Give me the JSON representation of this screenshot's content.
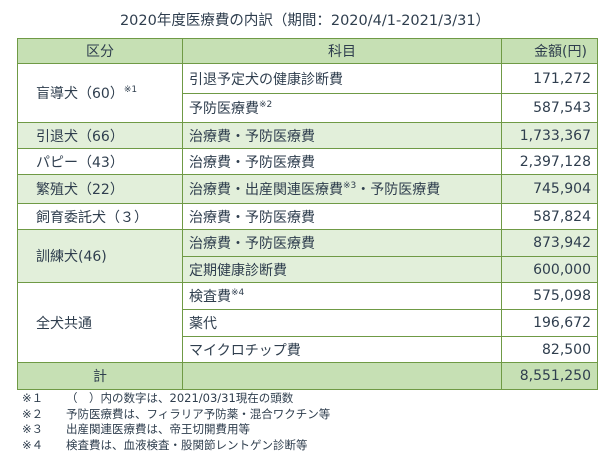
{
  "title": "2020年度医療費の内訳（期間：2020/4/1-2021/3/31）",
  "headers": [
    "区分",
    "科目",
    "金額(円)"
  ],
  "rows": [
    {
      "category": "盲導犬（60）",
      "category_note": "※1",
      "item": "引退予定犬の健康診断費",
      "amount": "171,272"
    },
    {
      "item": "予防医療費",
      "item_note": "※2",
      "amount": "587,543"
    },
    {
      "category": "引退犬（66）",
      "item": "治療費・予防医療費",
      "amount": "1,733,367"
    },
    {
      "category": "パピー（43）",
      "item": "治療費・予防医療費",
      "amount": "2,397,128"
    },
    {
      "category": "繁殖犬（22）",
      "item": "治療費・出産関連医療費",
      "item_note": "※3",
      "item_suffix": "・予防医療費",
      "amount": "745,904"
    },
    {
      "category": "飼育委託犬（３）",
      "item": "治療費・予防医療費",
      "amount": "587,824"
    },
    {
      "category": "訓練犬(46)",
      "item": "治療費・予防医療費",
      "amount": "873,942"
    },
    {
      "item": "定期健康診断費",
      "amount": "600,000"
    },
    {
      "category": "全犬共通",
      "item": "検査費",
      "item_note": "※4",
      "amount": "575,098"
    },
    {
      "item": "薬代",
      "amount": "196,672"
    },
    {
      "item": "マイクロチップ費",
      "amount": "82,500"
    }
  ],
  "total": {
    "label": "計",
    "amount": "8,551,250"
  },
  "notes": [
    {
      "mark": "※１",
      "text": "（　）内の数字は、2021/03/31現在の頭数"
    },
    {
      "mark": "※２",
      "text": "予防医療費は、フィラリア予防薬・混合ワクチン等"
    },
    {
      "mark": "※３",
      "text": "出産関連医療費は、帝王切開費用等"
    },
    {
      "mark": "※４",
      "text": "検査費は、血液検査・股関節レントゲン診断等"
    }
  ]
}
